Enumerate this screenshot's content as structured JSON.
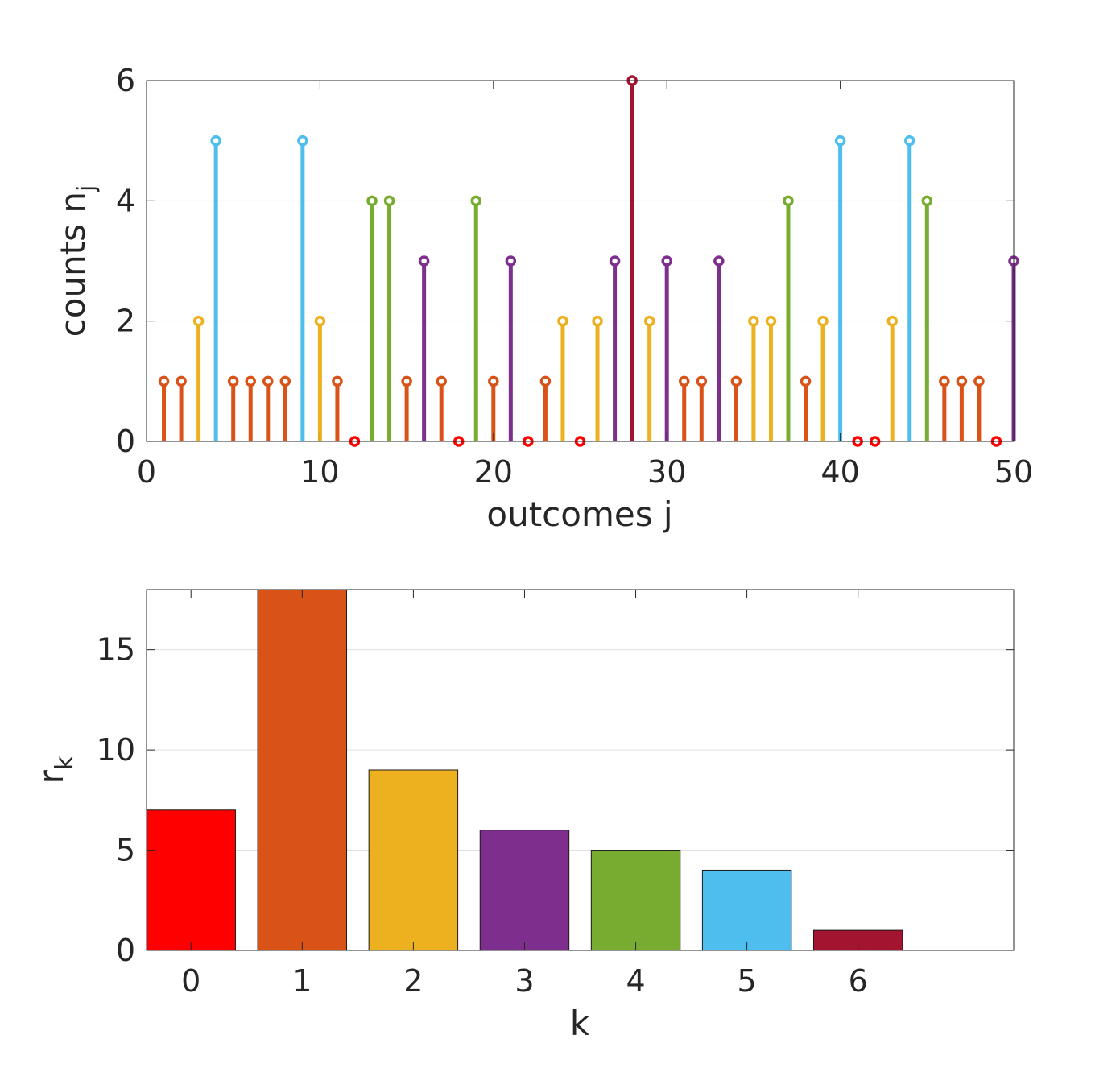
{
  "chart_data": [
    {
      "type": "stem",
      "xlabel": "outcomes j",
      "ylabel": "counts n",
      "ylabel_subscript": "j",
      "xlim": [
        0,
        50
      ],
      "ylim": [
        0,
        6
      ],
      "xticks": [
        0,
        10,
        20,
        30,
        40,
        50
      ],
      "yticks": [
        0,
        2,
        4,
        6
      ],
      "grid": "y",
      "x": [
        1,
        2,
        3,
        4,
        5,
        6,
        7,
        8,
        9,
        10,
        11,
        12,
        13,
        14,
        15,
        16,
        17,
        18,
        19,
        20,
        21,
        22,
        23,
        24,
        25,
        26,
        27,
        28,
        29,
        30,
        31,
        32,
        33,
        34,
        35,
        36,
        37,
        38,
        39,
        40,
        41,
        42,
        43,
        44,
        45,
        46,
        47,
        48,
        49,
        50
      ],
      "values": [
        1,
        1,
        2,
        5,
        1,
        1,
        1,
        1,
        5,
        2,
        1,
        0,
        4,
        4,
        1,
        3,
        1,
        0,
        4,
        1,
        3,
        0,
        1,
        2,
        0,
        2,
        3,
        6,
        2,
        3,
        1,
        1,
        3,
        1,
        2,
        2,
        4,
        1,
        2,
        5,
        0,
        0,
        2,
        5,
        4,
        1,
        1,
        1,
        0,
        3
      ],
      "color_by_value": {
        "0": "#FF0000",
        "1": "#D95319",
        "2": "#EDB120",
        "3": "#7E2F8E",
        "4": "#77AC30",
        "5": "#4DBEEE",
        "6": "#A2142F"
      }
    },
    {
      "type": "bar",
      "xlabel": "k",
      "ylabel": "r",
      "ylabel_subscript": "k",
      "categories": [
        "0",
        "1",
        "2",
        "3",
        "4",
        "5",
        "6"
      ],
      "values": [
        7,
        18,
        9,
        6,
        5,
        4,
        1
      ],
      "colors": [
        "#FF0000",
        "#D95319",
        "#EDB120",
        "#7E2F8E",
        "#77AC30",
        "#4DBEEE",
        "#A2142F"
      ],
      "xlim": [
        -0.4,
        7.4
      ],
      "ylim": [
        0,
        18
      ],
      "yticks": [
        0,
        5,
        10,
        15
      ],
      "grid": "y"
    }
  ]
}
